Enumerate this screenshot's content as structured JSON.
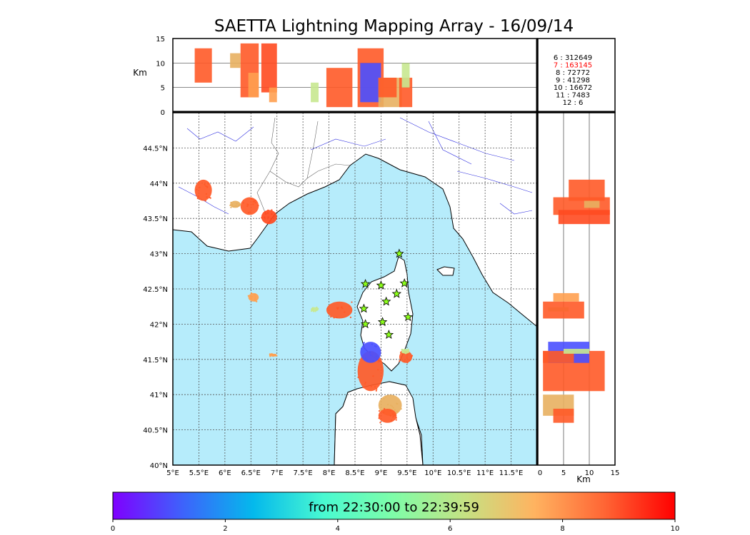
{
  "title": "SAETTA Lightning Mapping Array - 16/09/14",
  "chart_data": {
    "type": "scatter",
    "title": "SAETTA Lightning Mapping Array - 16/09/14",
    "map": {
      "x_range": [
        5,
        12
      ],
      "y_range": [
        40,
        45
      ],
      "x_ticks": [
        "5°E",
        "5.5°E",
        "6°E",
        "6.5°E",
        "7°E",
        "7.5°E",
        "8°E",
        "8.5°E",
        "9°E",
        "9.5°E",
        "10°E",
        "10.5°E",
        "11°E",
        "11.5°E"
      ],
      "y_ticks": [
        "40°N",
        "40.5°N",
        "41°N",
        "41.5°N",
        "42°N",
        "42.5°N",
        "43°N",
        "43.5°N",
        "44°N",
        "44.5°N"
      ]
    },
    "top_panel": {
      "ylabel": "Km",
      "y_range": [
        0,
        15
      ],
      "y_ticks": [
        "0",
        "5",
        "10",
        "15"
      ]
    },
    "right_panel": {
      "xlabel": "Km",
      "x_range": [
        0,
        15
      ],
      "x_ticks": [
        "0",
        "5",
        "10",
        "15"
      ]
    },
    "station_stats": [
      {
        "stations": "6",
        "count": "312649",
        "color": "#000000"
      },
      {
        "stations": "7",
        "count": "163145",
        "color": "#ff0000"
      },
      {
        "stations": "8",
        "count": "72772",
        "color": "#000000"
      },
      {
        "stations": "9",
        "count": "41298",
        "color": "#000000"
      },
      {
        "stations": "10",
        "count": "16672",
        "color": "#000000"
      },
      {
        "stations": "11",
        "count": "7483",
        "color": "#000000"
      },
      {
        "stations": "12",
        "count": "6",
        "color": "#000000"
      }
    ],
    "stations": [
      {
        "lon": 9.35,
        "lat": 43.0
      },
      {
        "lon": 8.7,
        "lat": 42.57
      },
      {
        "lon": 9.0,
        "lat": 42.55
      },
      {
        "lon": 9.45,
        "lat": 42.58
      },
      {
        "lon": 9.3,
        "lat": 42.43
      },
      {
        "lon": 9.1,
        "lat": 42.32
      },
      {
        "lon": 8.67,
        "lat": 42.22
      },
      {
        "lon": 9.52,
        "lat": 42.1
      },
      {
        "lon": 8.7,
        "lat": 42.0
      },
      {
        "lon": 9.03,
        "lat": 42.03
      },
      {
        "lon": 9.15,
        "lat": 41.85
      }
    ],
    "clusters": [
      {
        "lon_min": 5.42,
        "lon_max": 5.75,
        "lat_min": 43.75,
        "lat_max": 44.05,
        "alt_min": 6,
        "alt_max": 13,
        "color": "#ff5a28"
      },
      {
        "lon_min": 6.3,
        "lon_max": 6.65,
        "lat_min": 43.55,
        "lat_max": 43.8,
        "alt_min": 3,
        "alt_max": 14,
        "color": "#ff5a28"
      },
      {
        "lon_min": 6.7,
        "lon_max": 7.0,
        "lat_min": 43.42,
        "lat_max": 43.62,
        "alt_min": 4,
        "alt_max": 14,
        "color": "#ff4a20"
      },
      {
        "lon_min": 6.1,
        "lon_max": 6.3,
        "lat_min": 43.65,
        "lat_max": 43.75,
        "alt_min": 9,
        "alt_max": 12,
        "color": "#e8b060"
      },
      {
        "lon_min": 6.45,
        "lon_max": 6.65,
        "lat_min": 42.32,
        "lat_max": 42.44,
        "alt_min": 3,
        "alt_max": 8,
        "color": "#ffa050"
      },
      {
        "lon_min": 6.85,
        "lon_max": 7.0,
        "lat_min": 41.54,
        "lat_max": 41.58,
        "alt_min": 2,
        "alt_max": 5,
        "color": "#ffa050"
      },
      {
        "lon_min": 7.65,
        "lon_max": 7.8,
        "lat_min": 42.18,
        "lat_max": 42.24,
        "alt_min": 2,
        "alt_max": 6,
        "color": "#c8e890"
      },
      {
        "lon_min": 7.95,
        "lon_max": 8.45,
        "lat_min": 42.08,
        "lat_max": 42.32,
        "alt_min": 1,
        "alt_max": 9,
        "color": "#ff5a28"
      },
      {
        "lon_min": 8.55,
        "lon_max": 9.05,
        "lat_min": 41.05,
        "lat_max": 41.62,
        "alt_min": 1,
        "alt_max": 13,
        "color": "#ff5a28"
      },
      {
        "lon_min": 8.6,
        "lon_max": 9.0,
        "lat_min": 41.45,
        "lat_max": 41.75,
        "alt_min": 2,
        "alt_max": 10,
        "color": "#4a50ff"
      },
      {
        "lon_min": 8.95,
        "lon_max": 9.4,
        "lat_min": 40.7,
        "lat_max": 41.0,
        "alt_min": 1,
        "alt_max": 7,
        "color": "#e8b060"
      },
      {
        "lon_min": 8.95,
        "lon_max": 9.3,
        "lat_min": 40.6,
        "lat_max": 40.8,
        "alt_min": 3,
        "alt_max": 7,
        "color": "#ff5a28"
      },
      {
        "lon_min": 9.35,
        "lon_max": 9.6,
        "lat_min": 41.45,
        "lat_max": 41.62,
        "alt_min": 1,
        "alt_max": 7,
        "color": "#ff5a28"
      },
      {
        "lon_min": 9.4,
        "lon_max": 9.55,
        "lat_min": 41.58,
        "lat_max": 41.65,
        "alt_min": 5,
        "alt_max": 10,
        "color": "#c8e890"
      }
    ],
    "colorbar": {
      "label": "from 22:30:00 to 22:39:59",
      "range": [
        0,
        10
      ],
      "ticks": [
        "0",
        "2",
        "4",
        "6",
        "8",
        "10"
      ],
      "colors": [
        "#7f00ff",
        "#3d63fb",
        "#04b9ec",
        "#49f9d1",
        "#7ffda8",
        "#c5e283",
        "#ffb360",
        "#ff6534",
        "#ff0000"
      ]
    },
    "xlabel": "Km",
    "ylabel": "Km"
  }
}
